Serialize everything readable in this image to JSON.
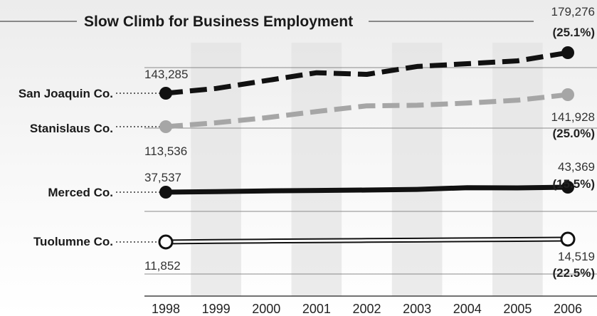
{
  "chart_data": {
    "type": "line",
    "title": "Slow Climb for Business Employment",
    "categories": [
      "1998",
      "1999",
      "2000",
      "2001",
      "2002",
      "2003",
      "2004",
      "2005",
      "2006"
    ],
    "ylim": [
      0,
      190000
    ],
    "grid": true,
    "series": [
      {
        "name": "San Joaquin Co.",
        "color": "#111111",
        "dash": "dashed",
        "marker": "filled",
        "values": [
          143285,
          147500,
          154500,
          161500,
          160000,
          167000,
          169500,
          172000,
          179276
        ],
        "start_label": "143,285",
        "end_label": "179,276",
        "end_pct": "(25.1%)"
      },
      {
        "name": "Stanislaus Co.",
        "color": "#a6a6a6",
        "dash": "dashed",
        "marker": "filled",
        "values": [
          113536,
          117000,
          121500,
          127000,
          132000,
          132500,
          134500,
          137000,
          141928
        ],
        "start_label": "113,536",
        "end_label": "141,928",
        "end_pct": "(25.0%)"
      },
      {
        "name": "Merced Co.",
        "color": "#111111",
        "dash": "solid",
        "marker": "filled",
        "values": [
          37537,
          38200,
          39000,
          39500,
          40000,
          40800,
          42800,
          42500,
          43369
        ],
        "start_label": "37,537",
        "end_label": "43,369",
        "end_pct": "(15.5%)"
      },
      {
        "name": "Tuolumne Co.",
        "color": "#111111",
        "dash": "outline",
        "marker": "hollow",
        "values": [
          11852,
          12300,
          12700,
          13000,
          13300,
          13600,
          13900,
          14200,
          14519
        ],
        "start_label": "11,852",
        "end_label": "14,519",
        "end_pct": "(22.5%)"
      }
    ]
  }
}
